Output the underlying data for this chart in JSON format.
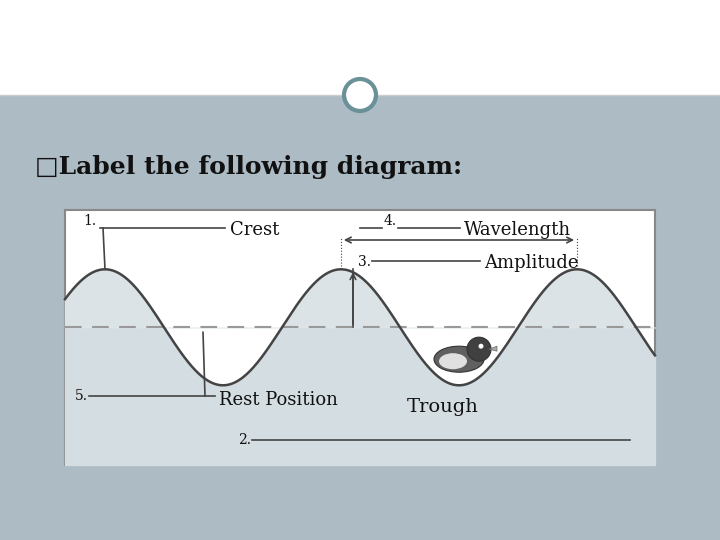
{
  "bg_color": "#adbbc4",
  "header_bg": "#ffffff",
  "title_text": "□Label the following diagram:",
  "title_fontsize": 18,
  "title_color": "#111111",
  "wave_color": "#444444",
  "wave_fill": "#d8e0e4",
  "dashed_color": "#999999",
  "label_color": "#111111",
  "box_bg": "#e8ecee",
  "circle_color": "#6a9098",
  "label_1": "1.",
  "label_2": "2.",
  "label_3": "3.",
  "label_4": "4.",
  "label_5": "5.",
  "crest_text": "Crest",
  "wavelength_text": "Wavelength",
  "amplitude_text": "Amplitude",
  "rest_text": "Rest Position",
  "trough_text": "Trough"
}
